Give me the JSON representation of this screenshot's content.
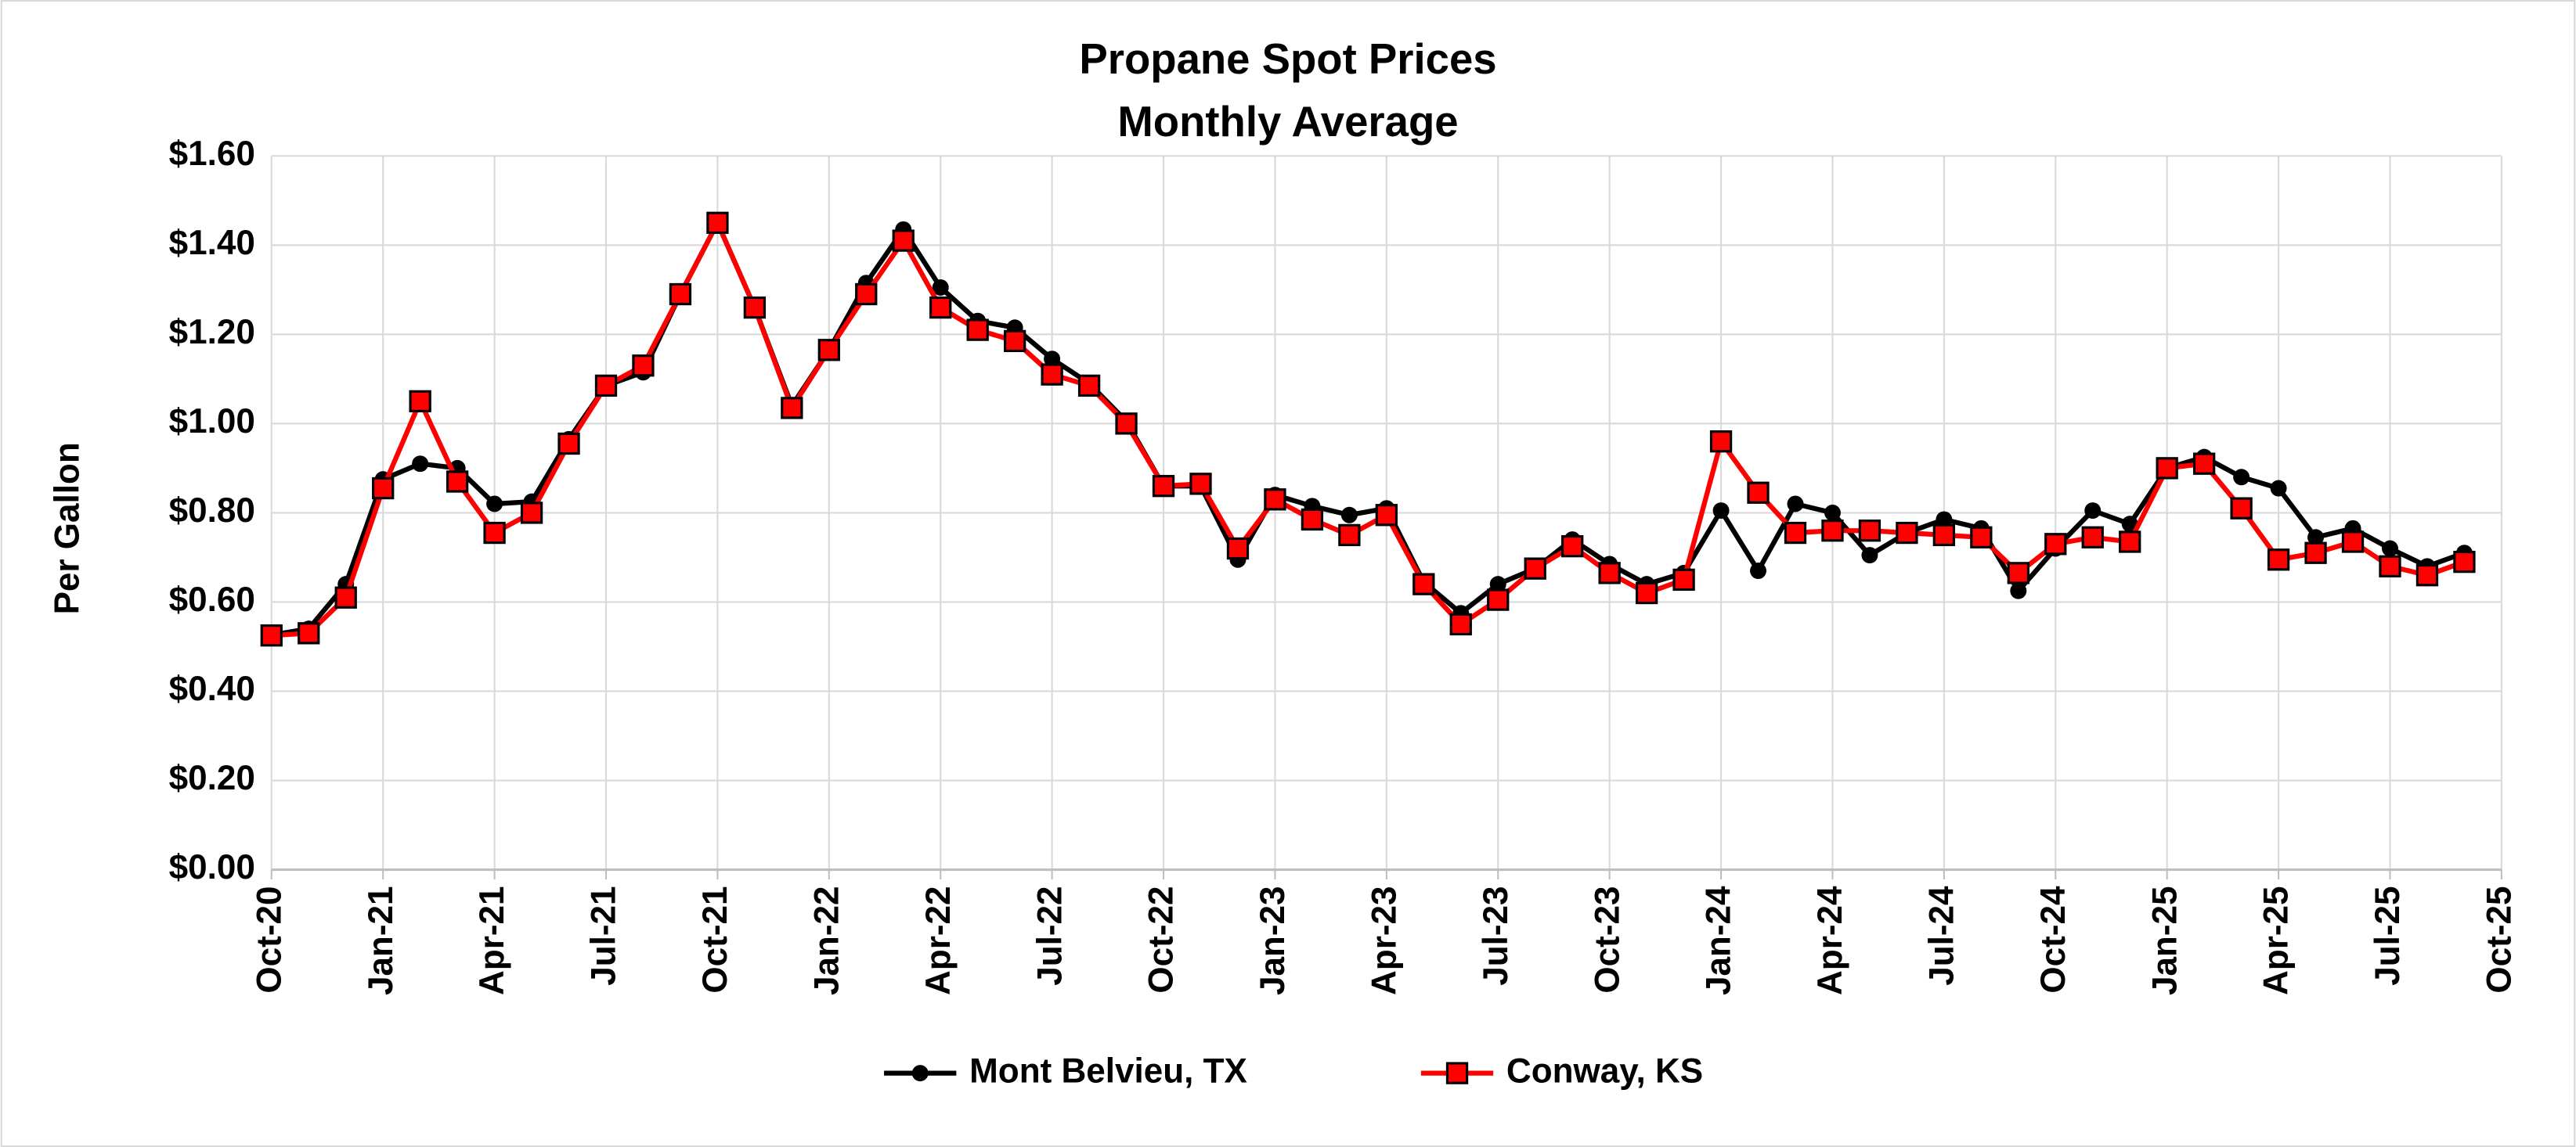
{
  "chart_data": {
    "type": "line",
    "title": "Propane Spot Prices",
    "subtitle": "Monthly Average",
    "y_label": "Per Gallon",
    "categories": [
      "Oct-20",
      null,
      null,
      "Jan-21",
      null,
      null,
      "Apr-21",
      null,
      null,
      "Jul-21",
      null,
      null,
      "Oct-21",
      null,
      null,
      "Jan-22",
      null,
      null,
      "Apr-22",
      null,
      null,
      "Jul-22",
      null,
      null,
      "Oct-22",
      null,
      null,
      "Jan-23",
      null,
      null,
      "Apr-23",
      null,
      null,
      "Jul-23",
      null,
      null,
      "Oct-23",
      null,
      null,
      "Jan-24",
      null,
      null,
      "Apr-24",
      null,
      null,
      "Jul-24",
      null,
      null,
      "Oct-24",
      null,
      null,
      "Jan-25",
      null,
      null,
      "Apr-25",
      null,
      null,
      "Jul-25",
      null,
      null,
      "Oct-25"
    ],
    "series": [
      {
        "name": "Mont Belvieu, TX",
        "color": "#000000",
        "marker": "circle",
        "values": [
          0.526,
          0.54,
          0.64,
          0.875,
          0.91,
          0.9,
          0.82,
          0.825,
          0.965,
          1.085,
          1.115,
          1.29,
          1.45,
          1.26,
          1.04,
          1.165,
          1.315,
          1.435,
          1.305,
          1.23,
          1.215,
          1.145,
          1.09,
          1.005,
          0.86,
          0.86,
          0.695,
          0.84,
          0.815,
          0.795,
          0.81,
          0.645,
          0.575,
          0.64,
          0.675,
          0.74,
          0.685,
          0.64,
          0.665,
          0.805,
          0.67,
          0.82,
          0.8,
          0.705,
          0.755,
          0.785,
          0.765,
          0.625,
          0.72,
          0.805,
          0.775,
          0.9,
          0.925,
          0.88,
          0.855,
          0.745,
          0.765,
          0.72,
          0.68,
          0.71,
          null
        ]
      },
      {
        "name": "Conway, KS",
        "color": "#ff0000",
        "marker": "square",
        "values": [
          0.525,
          0.53,
          0.61,
          0.855,
          1.05,
          0.87,
          0.755,
          0.8,
          0.955,
          1.085,
          1.13,
          1.29,
          1.45,
          1.26,
          1.035,
          1.165,
          1.29,
          1.41,
          1.26,
          1.21,
          1.185,
          1.11,
          1.085,
          1.0,
          0.86,
          0.865,
          0.72,
          0.83,
          0.785,
          0.75,
          0.795,
          0.64,
          0.55,
          0.605,
          0.675,
          0.725,
          0.665,
          0.62,
          0.65,
          0.96,
          0.845,
          0.755,
          0.76,
          0.76,
          0.755,
          0.75,
          0.745,
          0.665,
          0.73,
          0.745,
          0.735,
          0.9,
          0.91,
          0.81,
          0.695,
          0.71,
          0.735,
          0.68,
          0.66,
          0.69,
          null
        ]
      }
    ],
    "ylim": [
      0,
      1.6
    ],
    "yticks": [
      {
        "value": 0,
        "label": "$0.00"
      },
      {
        "value": 0.2,
        "label": "$0.20"
      },
      {
        "value": 0.4,
        "label": "$0.40"
      },
      {
        "value": 0.6,
        "label": "$0.60"
      },
      {
        "value": 0.8,
        "label": "$0.80"
      },
      {
        "value": 1.0,
        "label": "$1.00"
      },
      {
        "value": 1.2,
        "label": "$1.20"
      },
      {
        "value": 1.4,
        "label": "$1.40"
      },
      {
        "value": 1.6,
        "label": "$1.60"
      }
    ],
    "grid": true,
    "legend": "bottom"
  }
}
